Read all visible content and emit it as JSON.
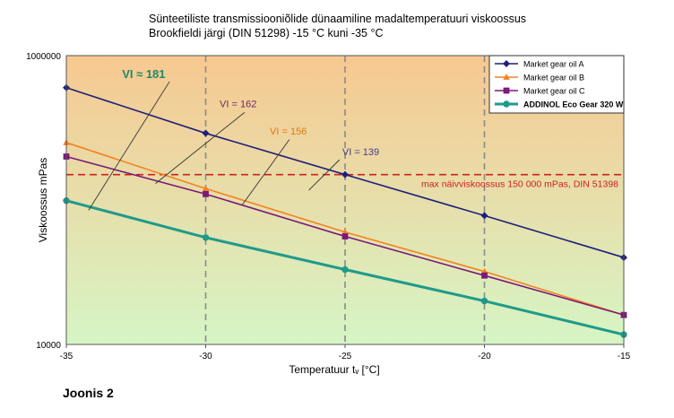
{
  "figure": {
    "caption": "Joonis 2"
  },
  "chart_data": {
    "type": "line",
    "title_lines": [
      "Sünteetiliste transmissiooniõlide dünaamiline madaltemperatuuri viskoossus",
      "Brookfieldi järgi (DIN 51298) -15 °C kuni -35 °C"
    ],
    "xlabel": "Temperatuur tᵥ [°C]",
    "ylabel": "Viskoossus mPas",
    "x_ticks": [
      -35,
      -30,
      -25,
      -20,
      -15
    ],
    "x_tick_labels": [
      "-35",
      "-30",
      "-25",
      "-20",
      "-15"
    ],
    "xlim": [
      -35,
      -15
    ],
    "y_scale": "log",
    "ylim": [
      10000,
      1000000
    ],
    "y_tick_labels": [
      {
        "value": 1000000,
        "label": "1000000"
      },
      {
        "value": 10000,
        "label": "10000"
      }
    ],
    "grid": "vertical dashed at -30, -25, -20",
    "background_gradient": [
      "#f7c890",
      "#d6f5c5"
    ],
    "x": [
      -35,
      -30,
      -25,
      -20,
      -15
    ],
    "series": [
      {
        "name": "Market gear oil A",
        "color": "#1f1f7a",
        "marker": "diamond",
        "line_width": 1.6,
        "values": [
          600000,
          290000,
          150000,
          78000,
          40000
        ]
      },
      {
        "name": "Market gear oil B",
        "color": "#f58220",
        "marker": "triangle",
        "line_width": 1.6,
        "values": [
          250000,
          120000,
          60000,
          32000,
          16000
        ]
      },
      {
        "name": "Market gear oil C",
        "color": "#7a1a7a",
        "marker": "square",
        "line_width": 1.6,
        "values": [
          200000,
          110000,
          56000,
          30000,
          16000
        ]
      },
      {
        "name": "ADDINOL Eco Gear 320 W",
        "color": "#1f9a8a",
        "marker": "circle",
        "line_width": 3,
        "values": [
          99000,
          55000,
          33000,
          20000,
          11700
        ]
      }
    ],
    "legend_position": "top-right",
    "reference_line": {
      "value": 150000,
      "color": "#cc2222",
      "label": "max näivviskoossus 150 000 mPas, DIN 51398"
    },
    "annotations": [
      {
        "text": "VI ≈ 181",
        "color": "#1f8a6a",
        "bold": true,
        "text_x": -33,
        "text_y": 700000,
        "line": [
          [
            -34.2,
            85000
          ],
          [
            -31.3,
            660000
          ]
        ]
      },
      {
        "text": "VI = 162",
        "color": "#6a2a6a",
        "bold": false,
        "text_x": -29.5,
        "text_y": 440000,
        "line": [
          [
            -31.8,
            130000
          ],
          [
            -28.6,
            405000
          ]
        ]
      },
      {
        "text": "VI = 156",
        "color": "#e07a10",
        "bold": false,
        "text_x": -27.7,
        "text_y": 285000,
        "line": [
          [
            -28.7,
            92000
          ],
          [
            -27.0,
            262000
          ]
        ]
      },
      {
        "text": "VI = 139",
        "color": "#4a3a8a",
        "bold": false,
        "text_x": -25.1,
        "text_y": 205000,
        "line": [
          [
            -26.3,
            117000
          ],
          [
            -25.2,
            190000
          ]
        ]
      }
    ]
  }
}
